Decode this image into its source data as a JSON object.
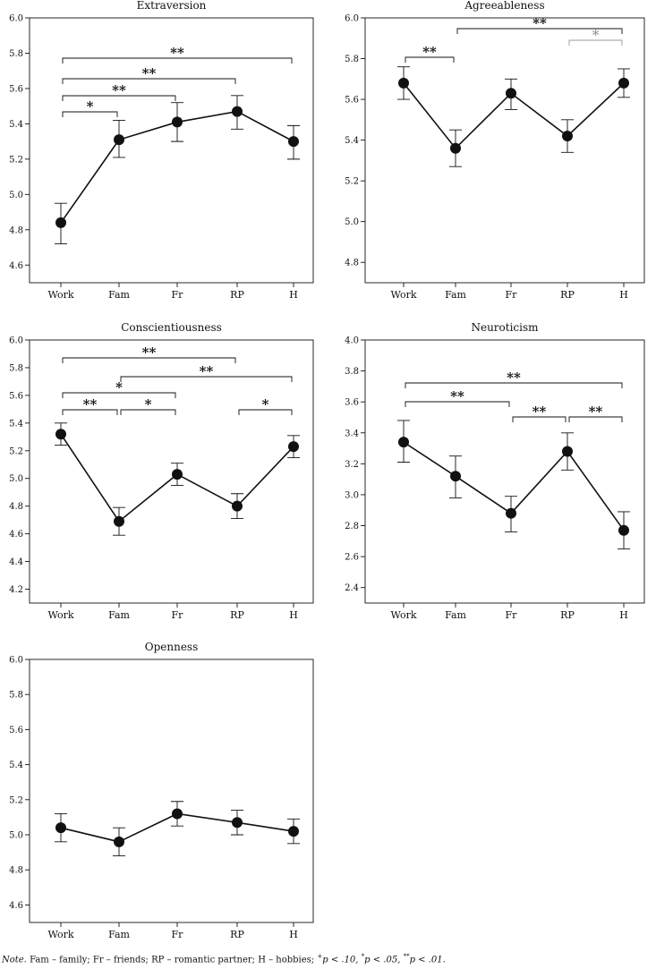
{
  "chart_data": [
    {
      "type": "line",
      "title": "Extraversion",
      "categories": [
        "Work",
        "Fam",
        "Fr",
        "RP",
        "H"
      ],
      "values": [
        4.84,
        5.31,
        5.41,
        5.47,
        5.3
      ],
      "error_low": [
        4.72,
        5.21,
        5.3,
        5.37,
        5.2
      ],
      "error_high": [
        4.95,
        5.42,
        5.52,
        5.56,
        5.39
      ],
      "ylim": [
        4.5,
        6.0
      ],
      "yticks": [
        "4.6",
        "4.8",
        "5.0",
        "5.2",
        "5.4",
        "5.6",
        "5.8",
        "6.0"
      ],
      "brackets": [
        {
          "from": 0,
          "to": 4,
          "label": "**",
          "muted": false
        },
        {
          "from": 0,
          "to": 3,
          "label": "**",
          "muted": false
        },
        {
          "from": 0,
          "to": 2,
          "label": "**",
          "muted": false
        },
        {
          "from": 0,
          "to": 1,
          "label": "*",
          "muted": false
        }
      ]
    },
    {
      "type": "line",
      "title": "Agreeableness",
      "categories": [
        "Work",
        "Fam",
        "Fr",
        "RP",
        "H"
      ],
      "values": [
        5.68,
        5.36,
        5.63,
        5.42,
        5.68
      ],
      "error_low": [
        5.6,
        5.27,
        5.55,
        5.34,
        5.61
      ],
      "error_high": [
        5.76,
        5.45,
        5.7,
        5.5,
        5.75
      ],
      "ylim": [
        4.7,
        6.0
      ],
      "yticks": [
        "4.8",
        "5.0",
        "5.2",
        "5.4",
        "5.6",
        "5.8",
        "6.0"
      ],
      "brackets": [
        {
          "from": 1,
          "to": 4,
          "label": "**",
          "muted": false
        },
        {
          "from": 3,
          "to": 4,
          "label": "*",
          "muted": true
        },
        {
          "from": 0,
          "to": 1,
          "label": "**",
          "muted": false
        }
      ]
    },
    {
      "type": "line",
      "title": "Conscientiousness",
      "categories": [
        "Work",
        "Fam",
        "Fr",
        "RP",
        "H"
      ],
      "values": [
        5.32,
        4.69,
        5.03,
        4.8,
        5.23
      ],
      "error_low": [
        5.24,
        4.59,
        4.95,
        4.71,
        5.15
      ],
      "error_high": [
        5.4,
        4.79,
        5.11,
        4.89,
        5.31
      ],
      "ylim": [
        4.1,
        6.0
      ],
      "yticks": [
        "4.2",
        "4.4",
        "4.6",
        "4.8",
        "5.0",
        "5.2",
        "5.4",
        "5.6",
        "5.8",
        "6.0"
      ],
      "brackets": [
        {
          "from": 0,
          "to": 3,
          "label": "**",
          "muted": false
        },
        {
          "from": 1,
          "to": 4,
          "label": "**",
          "muted": false
        },
        {
          "from": 0,
          "to": 2,
          "label": "*",
          "muted": false
        },
        {
          "from": 0,
          "to": 1,
          "label": "**",
          "muted": false
        },
        {
          "from": 1,
          "to": 2,
          "label": "*",
          "muted": false
        },
        {
          "from": 3,
          "to": 4,
          "label": "*",
          "muted": false
        }
      ]
    },
    {
      "type": "line",
      "title": "Neuroticism",
      "categories": [
        "Work",
        "Fam",
        "Fr",
        "RP",
        "H"
      ],
      "values": [
        3.34,
        3.12,
        2.88,
        3.28,
        2.77
      ],
      "error_low": [
        3.21,
        2.98,
        2.76,
        3.16,
        2.65
      ],
      "error_high": [
        3.48,
        3.25,
        2.99,
        3.4,
        2.89
      ],
      "ylim": [
        2.3,
        4.0
      ],
      "yticks": [
        "2.4",
        "2.6",
        "2.8",
        "3.0",
        "3.2",
        "3.4",
        "3.6",
        "3.8",
        "4.0"
      ],
      "brackets": [
        {
          "from": 0,
          "to": 4,
          "label": "**",
          "muted": false
        },
        {
          "from": 0,
          "to": 2,
          "label": "**",
          "muted": false
        },
        {
          "from": 2,
          "to": 3,
          "label": "**",
          "muted": false
        },
        {
          "from": 3,
          "to": 4,
          "label": "**",
          "muted": false
        }
      ]
    },
    {
      "type": "line",
      "title": "Openness",
      "categories": [
        "Work",
        "Fam",
        "Fr",
        "RP",
        "H"
      ],
      "values": [
        5.04,
        4.96,
        5.12,
        5.07,
        5.02
      ],
      "error_low": [
        4.96,
        4.88,
        5.05,
        5.0,
        4.95
      ],
      "error_high": [
        5.12,
        5.04,
        5.19,
        5.14,
        5.09
      ],
      "ylim": [
        4.5,
        6.0
      ],
      "yticks": [
        "4.6",
        "4.8",
        "5.0",
        "5.2",
        "5.4",
        "5.6",
        "5.8",
        "6.0"
      ],
      "brackets": []
    }
  ],
  "note": {
    "lead": "Note.",
    "text": "Fam – family; Fr – friends; RP – romantic partner; H – hobbies;",
    "sig10_mark": "+",
    "sig10_text": "p < .10,",
    "sig05_mark": "*",
    "sig05_text": "p < .05,",
    "sig01_mark": "**",
    "sig01_text": "p < .01."
  },
  "colors": {
    "ink": "#111111",
    "muted": "#9a9a9a"
  }
}
